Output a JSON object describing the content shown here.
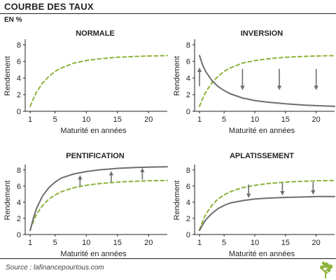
{
  "header": {
    "title": "COURBE DES TAUX",
    "unit": "EN %"
  },
  "footer": {
    "source": "Source : lafinancepourtous.com"
  },
  "colors": {
    "normal_curve": "#8db33a",
    "shifted_curve": "#6d6e71",
    "arrow": "#6d6e71",
    "axis": "#231f20"
  },
  "icons": {
    "logo": "tree-logo-icon"
  },
  "chart_data": [
    {
      "type": "line",
      "title": "NORMALE",
      "xlabel": "Maturité en années",
      "ylabel": "Rendement",
      "xlim": [
        0.2,
        23
      ],
      "ylim": [
        0,
        8.5
      ],
      "xticks": [
        1,
        5,
        10,
        15,
        20
      ],
      "yticks": [
        0,
        2,
        4,
        6,
        8
      ],
      "series": [
        {
          "style": "dashed",
          "color": "#8db33a",
          "x": [
            1,
            1.5,
            2,
            3,
            4,
            5,
            6,
            8,
            10,
            12,
            15,
            18,
            20,
            23
          ],
          "y": [
            0.6,
            1.5,
            2.3,
            3.4,
            4.2,
            4.8,
            5.2,
            5.8,
            6.1,
            6.3,
            6.5,
            6.6,
            6.65,
            6.7
          ]
        }
      ],
      "arrows": []
    },
    {
      "type": "line",
      "title": "INVERSION",
      "xlabel": "Maturité en années",
      "ylabel": "Rendement",
      "xlim": [
        0.2,
        23
      ],
      "ylim": [
        0,
        8.5
      ],
      "xticks": [
        1,
        5,
        10,
        15,
        20
      ],
      "yticks": [
        0,
        2,
        4,
        6,
        8
      ],
      "series": [
        {
          "style": "dashed",
          "color": "#8db33a",
          "x": [
            1,
            1.5,
            2,
            3,
            4,
            5,
            6,
            8,
            10,
            12,
            15,
            18,
            20,
            23
          ],
          "y": [
            0.6,
            1.5,
            2.3,
            3.4,
            4.2,
            4.8,
            5.2,
            5.8,
            6.1,
            6.3,
            6.5,
            6.6,
            6.65,
            6.7
          ]
        },
        {
          "style": "solid",
          "color": "#6d6e71",
          "x": [
            1,
            1.5,
            2,
            3,
            4,
            5,
            6,
            8,
            10,
            12,
            15,
            18,
            20,
            23
          ],
          "y": [
            6.7,
            5.6,
            4.8,
            3.7,
            3.0,
            2.5,
            2.1,
            1.6,
            1.3,
            1.1,
            0.9,
            0.75,
            0.68,
            0.6
          ]
        }
      ],
      "arrows": [
        {
          "x": 1,
          "from": 3.0,
          "to": 5.1
        },
        {
          "x": 8,
          "from": 5.1,
          "to": 2.7
        },
        {
          "x": 14,
          "from": 5.1,
          "to": 2.7
        },
        {
          "x": 20,
          "from": 5.1,
          "to": 2.7
        }
      ]
    },
    {
      "type": "line",
      "title": "PENTIFICATION",
      "xlabel": "Maturité en années",
      "ylabel": "Rendement",
      "xlim": [
        0.2,
        23
      ],
      "ylim": [
        0,
        8.5
      ],
      "xticks": [
        1,
        5,
        10,
        15,
        20
      ],
      "yticks": [
        0,
        2,
        4,
        6,
        8
      ],
      "series": [
        {
          "style": "dashed",
          "color": "#8db33a",
          "x": [
            1,
            1.5,
            2,
            3,
            4,
            5,
            6,
            8,
            10,
            12,
            15,
            18,
            20,
            23
          ],
          "y": [
            0.6,
            1.6,
            2.5,
            3.6,
            4.4,
            4.9,
            5.3,
            5.8,
            6.1,
            6.3,
            6.5,
            6.6,
            6.65,
            6.7
          ]
        },
        {
          "style": "solid",
          "color": "#6d6e71",
          "x": [
            1,
            1.5,
            2,
            3,
            4,
            5,
            6,
            8,
            10,
            12,
            15,
            18,
            20,
            23
          ],
          "y": [
            0.5,
            2.0,
            3.2,
            4.8,
            5.8,
            6.5,
            7.0,
            7.5,
            7.8,
            8.0,
            8.2,
            8.3,
            8.35,
            8.4
          ]
        }
      ],
      "arrows": [
        {
          "x": 9,
          "from": 6.0,
          "to": 7.2
        },
        {
          "x": 14,
          "from": 6.5,
          "to": 7.7
        },
        {
          "x": 19,
          "from": 6.8,
          "to": 8.1
        }
      ]
    },
    {
      "type": "line",
      "title": "APLATISSEMENT",
      "xlabel": "Maturité en années",
      "ylabel": "Rendement",
      "xlim": [
        0.2,
        23
      ],
      "ylim": [
        0,
        8.5
      ],
      "xticks": [
        1,
        5,
        10,
        15,
        20
      ],
      "yticks": [
        0,
        2,
        4,
        6,
        8
      ],
      "series": [
        {
          "style": "dashed",
          "color": "#8db33a",
          "x": [
            1,
            1.5,
            2,
            3,
            4,
            5,
            6,
            8,
            10,
            12,
            15,
            18,
            20,
            23
          ],
          "y": [
            0.6,
            1.6,
            2.5,
            3.6,
            4.4,
            4.9,
            5.3,
            5.8,
            6.1,
            6.3,
            6.5,
            6.6,
            6.65,
            6.7
          ]
        },
        {
          "style": "solid",
          "color": "#6d6e71",
          "x": [
            1,
            1.5,
            2,
            3,
            4,
            5,
            6,
            8,
            10,
            12,
            15,
            18,
            20,
            23
          ],
          "y": [
            0.5,
            1.2,
            1.8,
            2.6,
            3.2,
            3.6,
            3.9,
            4.2,
            4.4,
            4.5,
            4.6,
            4.65,
            4.7,
            4.7
          ]
        }
      ],
      "arrows": [
        {
          "x": 9,
          "from": 6.2,
          "to": 4.7
        },
        {
          "x": 14.5,
          "from": 6.4,
          "to": 5.0
        },
        {
          "x": 19.5,
          "from": 6.5,
          "to": 5.1
        }
      ]
    }
  ]
}
